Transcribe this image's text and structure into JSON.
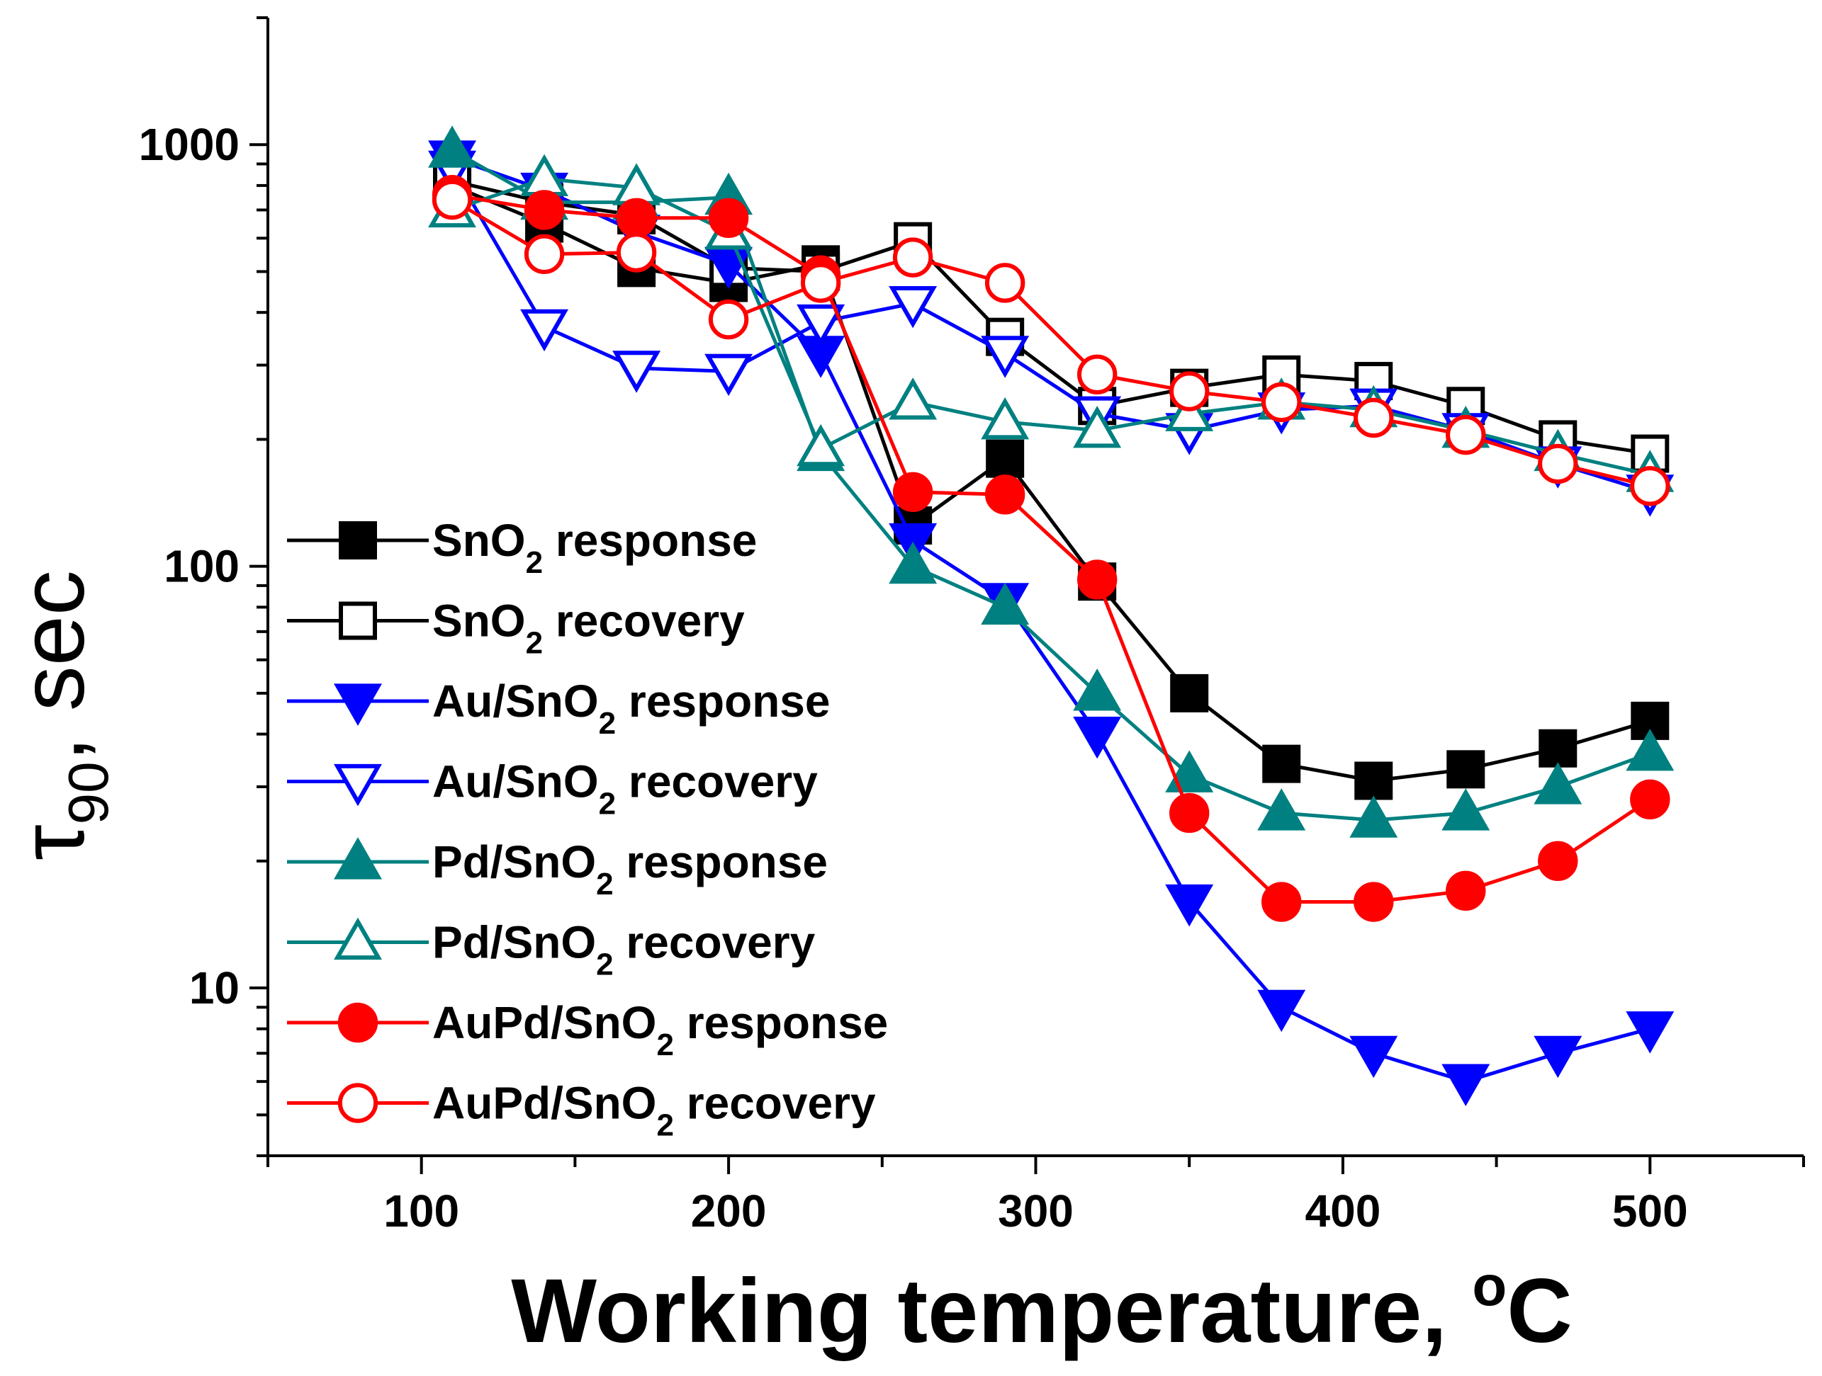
{
  "chart_data": {
    "type": "line",
    "title": "",
    "xlabel": "Working temperature, °C",
    "xlabel_parts": {
      "main": "Working temperature, ",
      "sup": "o",
      "unit": "C"
    },
    "ylabel": "τ_90, sec",
    "ylabel_parts": {
      "symbol": "τ",
      "sub": "90",
      "rest": ", sec"
    },
    "y_scale": "log",
    "xlim": [
      50,
      550
    ],
    "ylim": [
      4,
      2000
    ],
    "x_ticks": [
      100,
      200,
      300,
      400,
      500
    ],
    "x_tick_labels": [
      "100",
      "200",
      "300",
      "400",
      "500"
    ],
    "y_ticks": [
      10,
      100,
      1000
    ],
    "y_tick_labels": [
      "10",
      "100",
      "1000"
    ],
    "grid": false,
    "legend_position": "center-left",
    "x": [
      110,
      140,
      170,
      200,
      230,
      260,
      290,
      320,
      350,
      380,
      410,
      440,
      470,
      500
    ],
    "series": [
      {
        "name": "SnO2 response",
        "label_parts": {
          "pre": "SnO",
          "sub": "2",
          "post": " response"
        },
        "color": "#000000",
        "marker": "square",
        "filled": true,
        "values": [
          800,
          650,
          510,
          470,
          520,
          125,
          180,
          92,
          50,
          34,
          31,
          33,
          37,
          43
        ]
      },
      {
        "name": "SnO2 recovery",
        "label_parts": {
          "pre": "SnO",
          "sub": "2",
          "post": " recovery"
        },
        "color": "#000000",
        "marker": "square",
        "filled": false,
        "values": [
          820,
          730,
          680,
          510,
          500,
          590,
          350,
          240,
          265,
          285,
          275,
          240,
          200,
          185
        ]
      },
      {
        "name": "Au/SnO2 response",
        "label_parts": {
          "pre": "Au/SnO",
          "sub": "2",
          "post": " response"
        },
        "color": "#0000ff",
        "marker": "triangle-down",
        "filled": true,
        "values": [
          930,
          780,
          620,
          520,
          320,
          115,
          83,
          40,
          16,
          9,
          7,
          6,
          7,
          8
        ]
      },
      {
        "name": "Au/SnO2 recovery",
        "label_parts": {
          "pre": "Au/SnO",
          "sub": "2",
          "post": " recovery"
        },
        "color": "#0000ff",
        "marker": "triangle-down",
        "filled": false,
        "values": [
          880,
          370,
          295,
          290,
          380,
          420,
          320,
          230,
          210,
          235,
          240,
          210,
          175,
          150
        ]
      },
      {
        "name": "Pd/SnO2 response",
        "label_parts": {
          "pre": "Pd/SnO",
          "sub": "2",
          "post": " response"
        },
        "color": "#008080",
        "marker": "triangle-up",
        "filled": true,
        "values": [
          970,
          730,
          730,
          750,
          185,
          100,
          80,
          50,
          32,
          26,
          25,
          26,
          30,
          36
        ]
      },
      {
        "name": "Pd/SnO2 recovery",
        "label_parts": {
          "pre": "Pd/SnO",
          "sub": "2",
          "post": " recovery"
        },
        "color": "#008080",
        "marker": "triangle-up",
        "filled": false,
        "values": [
          700,
          830,
          790,
          620,
          190,
          245,
          220,
          210,
          230,
          245,
          235,
          210,
          185,
          165
        ]
      },
      {
        "name": "AuPd/SnO2 response",
        "label_parts": {
          "pre": "AuPd/SnO",
          "sub": "2",
          "post": " response"
        },
        "color": "#ff0000",
        "marker": "circle",
        "filled": true,
        "values": [
          760,
          700,
          670,
          670,
          490,
          150,
          148,
          93,
          26,
          16,
          16,
          17,
          20,
          28
        ]
      },
      {
        "name": "AuPd/SnO2 recovery",
        "label_parts": {
          "pre": "AuPd/SnO",
          "sub": "2",
          "post": " recovery"
        },
        "color": "#ff0000",
        "marker": "circle",
        "filled": false,
        "values": [
          740,
          550,
          555,
          385,
          470,
          540,
          470,
          285,
          260,
          245,
          225,
          205,
          175,
          155
        ]
      }
    ]
  }
}
